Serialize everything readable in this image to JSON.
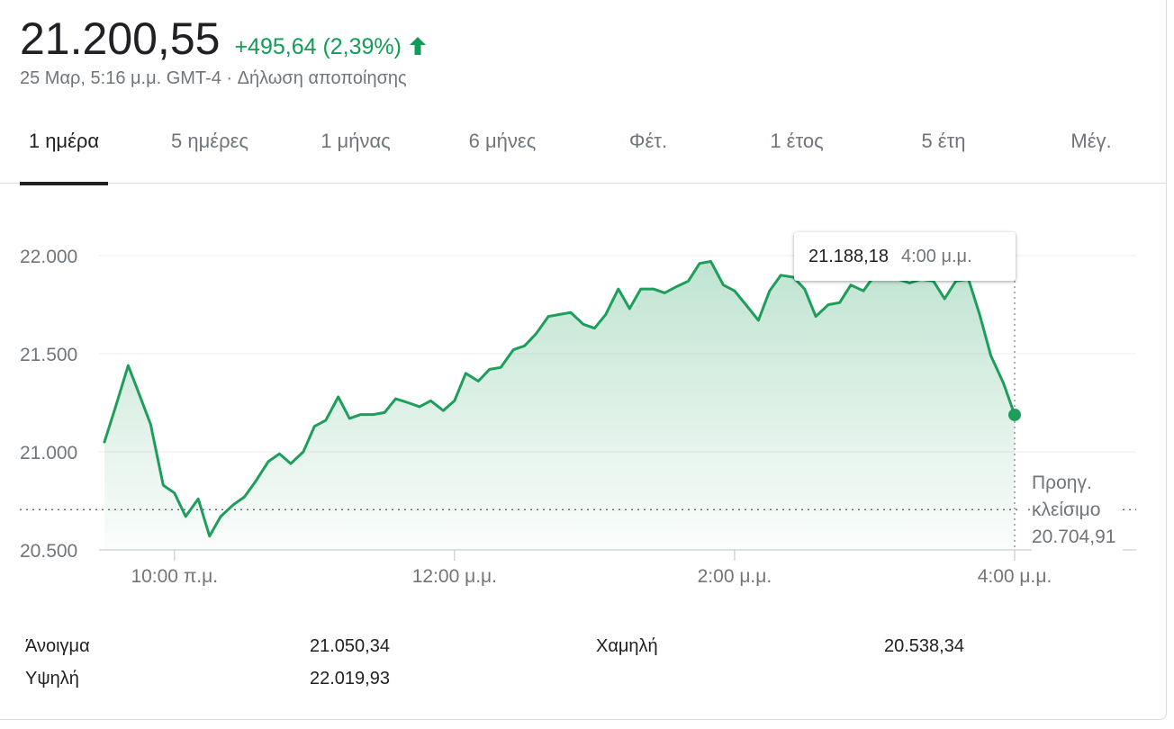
{
  "header": {
    "price": "21.200,55",
    "change": "+495,64 (2,39%)",
    "change_direction": "up",
    "timestamp": "25 Μαρ, 5:16 μ.μ. GMT-4",
    "separator": "·",
    "disclaimer": "Δήλωση αποποίησης"
  },
  "tabs": [
    {
      "label": "1 ημέρα",
      "active": true
    },
    {
      "label": "5 ημέρες",
      "active": false
    },
    {
      "label": "1 μήνας",
      "active": false
    },
    {
      "label": "6 μήνες",
      "active": false
    },
    {
      "label": "Φέτ.",
      "active": false
    },
    {
      "label": "1 έτος",
      "active": false
    },
    {
      "label": "5 έτη",
      "active": false
    },
    {
      "label": "Μέγ.",
      "active": false
    }
  ],
  "tooltip": {
    "value": "21.188,18",
    "time": "4:00 μ.μ."
  },
  "previous_close": {
    "label_line1": "Προηγ.",
    "label_line2": "κλείσιμο",
    "value": "20.704,91"
  },
  "stats": {
    "open_label": "Άνοιγμα",
    "open_value": "21.050,34",
    "high_label": "Υψηλή",
    "high_value": "22.019,93",
    "low_label": "Χαμηλή",
    "low_value": "20.538,34"
  },
  "colors": {
    "accent": "#0f9d58",
    "text": "#202124",
    "muted": "#70757a",
    "line": "#1e9e5b"
  },
  "chart_data": {
    "type": "line",
    "x_unit": "hours (local time)",
    "xlim": [
      9.5,
      16.4
    ],
    "ylim": [
      20450,
      22100
    ],
    "yticks": [
      20500,
      21000,
      21500,
      22000
    ],
    "ytick_labels": [
      "20.500",
      "21.000",
      "21.500",
      "22.000"
    ],
    "xticks": [
      10,
      12,
      14,
      16
    ],
    "xtick_labels": [
      "10:00 π.μ.",
      "12:00 μ.μ.",
      "2:00 μ.μ.",
      "4:00 μ.μ."
    ],
    "grid": true,
    "reference_line": 20704.91,
    "x": [
      9.5,
      9.58,
      9.67,
      9.75,
      9.83,
      9.92,
      10.0,
      10.08,
      10.17,
      10.25,
      10.33,
      10.42,
      10.5,
      10.58,
      10.67,
      10.75,
      10.83,
      10.92,
      11.0,
      11.08,
      11.17,
      11.25,
      11.33,
      11.42,
      11.5,
      11.58,
      11.67,
      11.75,
      11.83,
      11.92,
      12.0,
      12.08,
      12.17,
      12.25,
      12.33,
      12.42,
      12.5,
      12.58,
      12.67,
      12.75,
      12.83,
      12.92,
      13.0,
      13.08,
      13.17,
      13.25,
      13.33,
      13.42,
      13.5,
      13.58,
      13.67,
      13.75,
      13.83,
      13.92,
      14.0,
      14.08,
      14.17,
      14.25,
      14.33,
      14.42,
      14.5,
      14.58,
      14.67,
      14.75,
      14.83,
      14.92,
      15.0,
      15.08,
      15.17,
      15.25,
      15.33,
      15.42,
      15.5,
      15.58,
      15.67,
      15.75,
      15.83,
      15.92,
      16.0
    ],
    "y": [
      21050,
      21230,
      21440,
      21290,
      21140,
      20830,
      20790,
      20670,
      20760,
      20570,
      20670,
      20730,
      20770,
      20850,
      20950,
      20990,
      20940,
      21000,
      21130,
      21160,
      21280,
      21170,
      21190,
      21190,
      21200,
      21270,
      21250,
      21230,
      21260,
      21210,
      21260,
      21400,
      21360,
      21420,
      21430,
      21520,
      21540,
      21600,
      21690,
      21700,
      21710,
      21650,
      21630,
      21700,
      21830,
      21730,
      21830,
      21830,
      21810,
      21840,
      21870,
      21960,
      21970,
      21850,
      21820,
      21750,
      21670,
      21820,
      21900,
      21890,
      21830,
      21690,
      21750,
      21760,
      21850,
      21820,
      21900,
      21880,
      21880,
      21860,
      21880,
      21870,
      21780,
      21870,
      21880,
      21700,
      21490,
      21350,
      21188.18
    ]
  }
}
